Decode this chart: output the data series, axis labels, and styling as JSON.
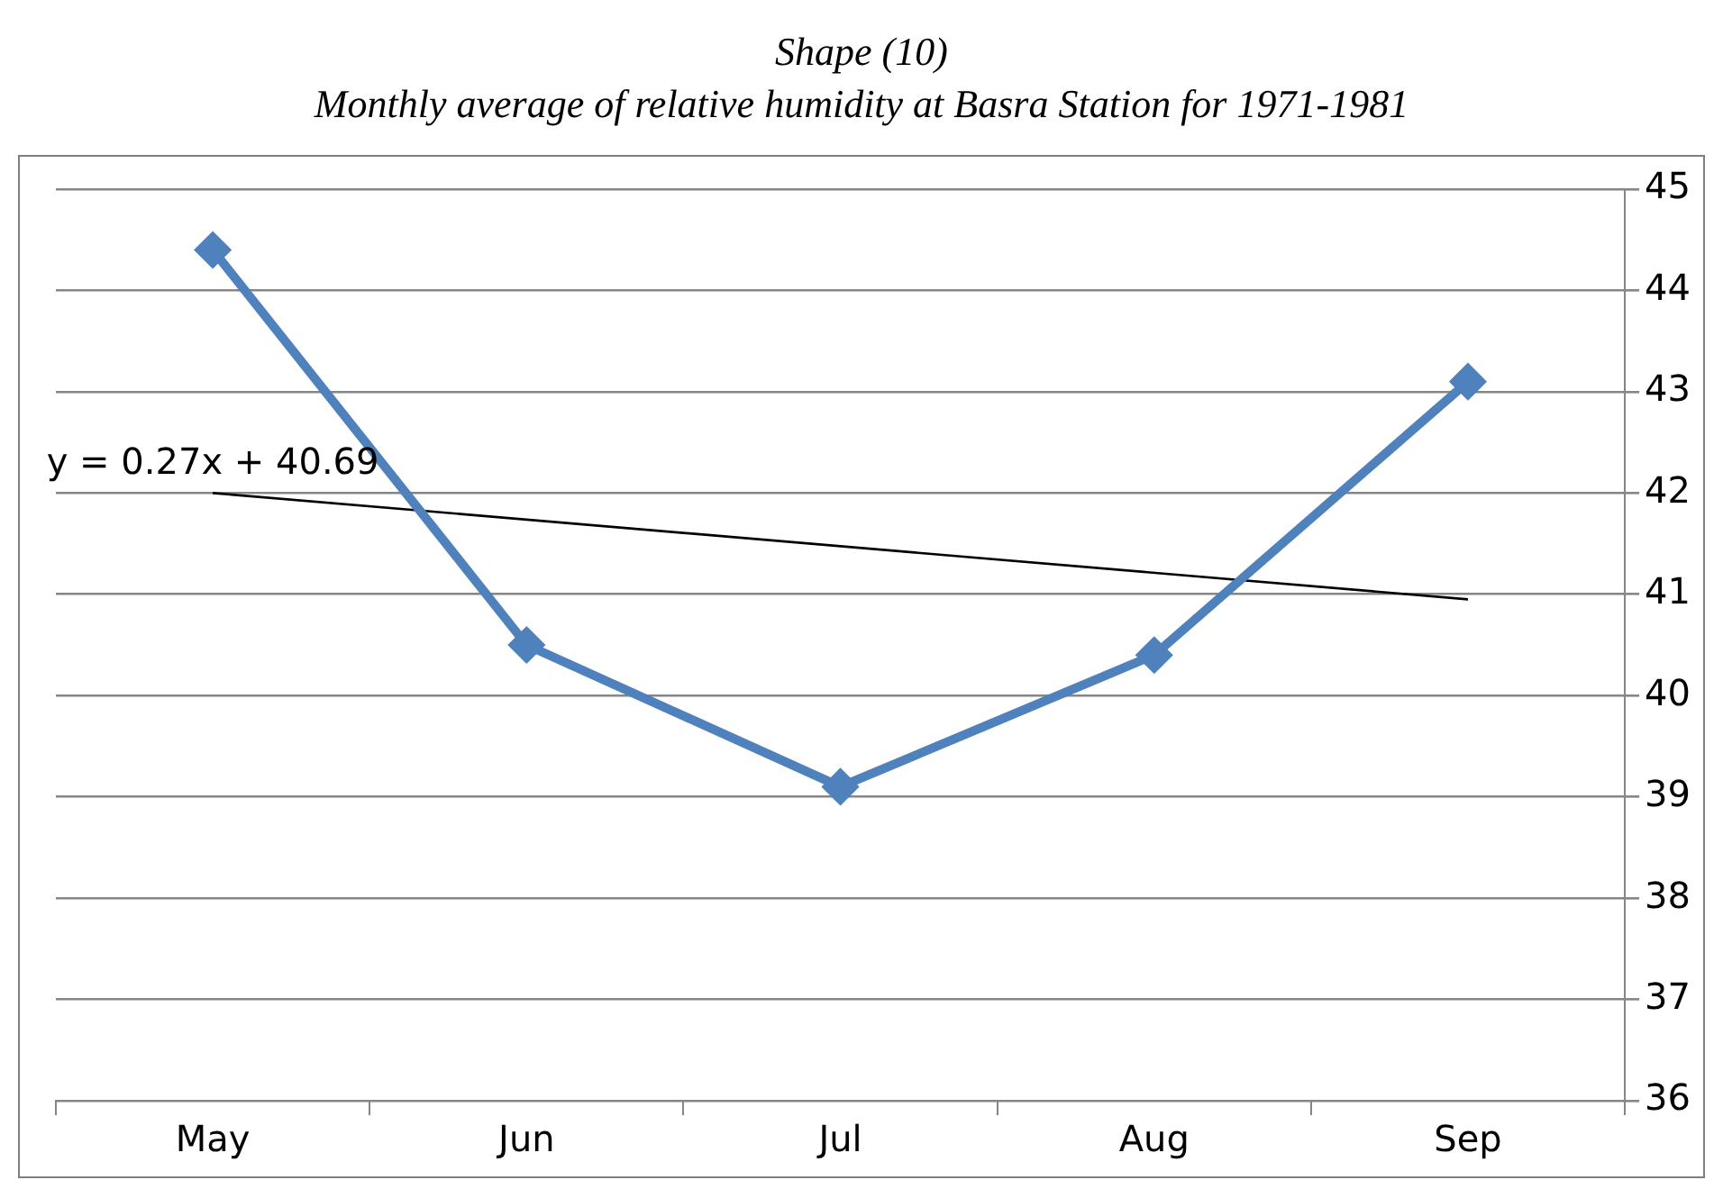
{
  "chart_data": {
    "type": "line",
    "title": "Shape (10)",
    "subtitle": "Monthly average of relative humidity at Basra Station for 1971-1981",
    "categories": [
      "May",
      "Jun",
      "Jul",
      "Aug",
      "Sep"
    ],
    "series": [
      {
        "color": "#4f81bd",
        "values": [
          44.4,
          40.5,
          39.1,
          40.4,
          43.1
        ],
        "marker": "diamond",
        "line_style": "solid"
      },
      {
        "type": "line",
        "color": "#000000",
        "x": [
          "May",
          "Sep"
        ],
        "values": [
          42.0,
          40.95
        ],
        "marker": "none",
        "line_style": "solid"
      }
    ],
    "ylim": [
      36,
      45
    ],
    "yticks": [
      36,
      37,
      38,
      39,
      40,
      41,
      42,
      43,
      44,
      45
    ],
    "grid": "y",
    "legend": false,
    "annotations": [
      {
        "text": "y = 0.27x + 40.69",
        "x": "May",
        "y": 42
      }
    ]
  }
}
